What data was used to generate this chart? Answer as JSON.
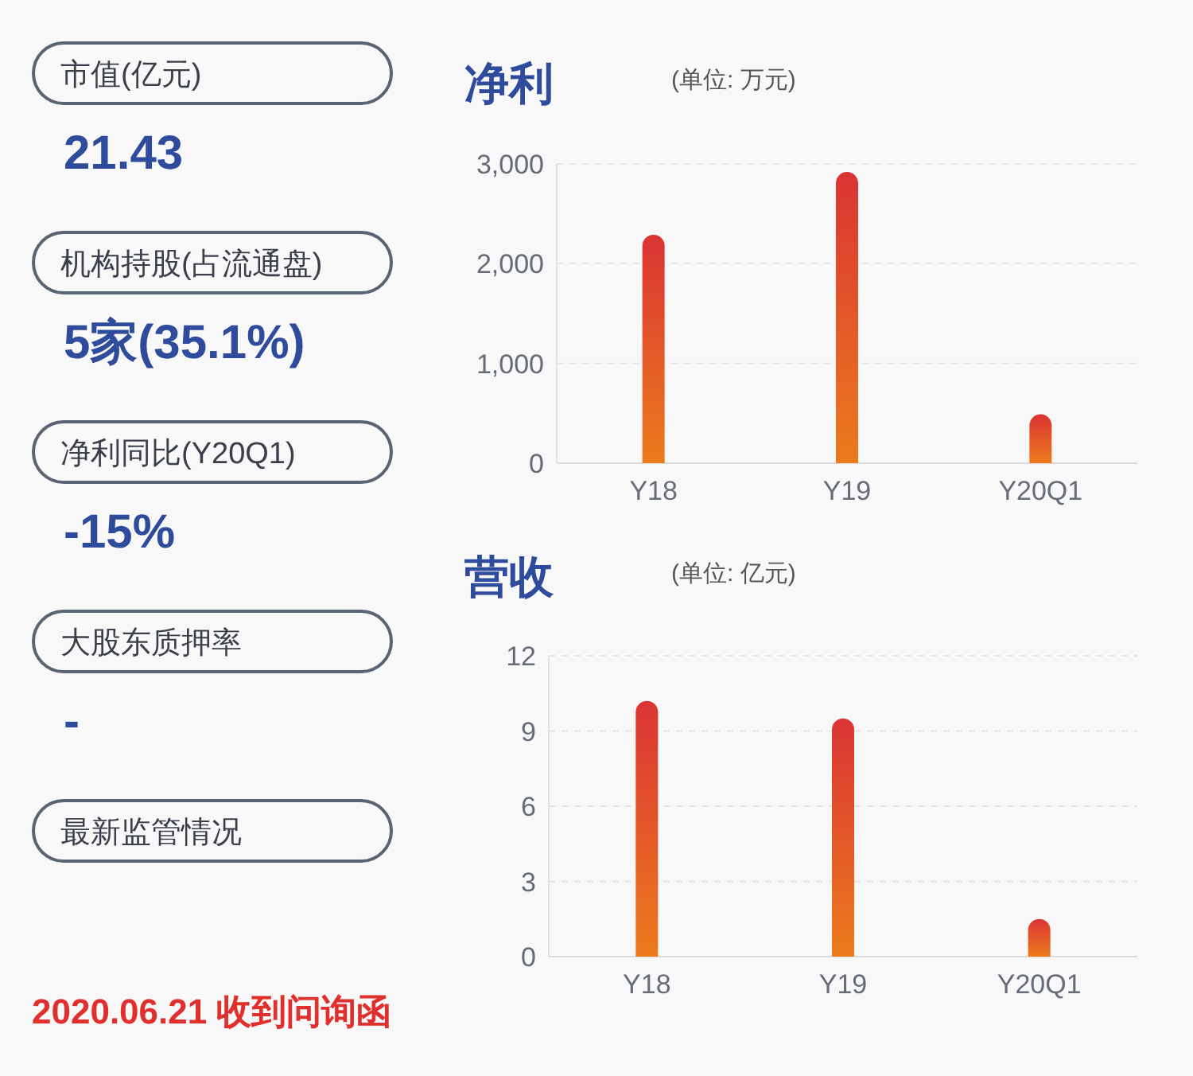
{
  "chart_data": [
    {
      "type": "other",
      "annotations": [
        "市值(亿元)",
        "21.43",
        "机构持股(占流通盘)",
        "5家(35.1%)",
        "净利同比(Y20Q1)",
        "-15%",
        "大股东质押率",
        "-",
        "最新监管情况",
        "2020.06.21 收到问询函"
      ]
    },
    {
      "type": "bar",
      "title": "净利",
      "subtitle": "(单位: 万元)",
      "categories": [
        "Y18",
        "Y19",
        "Y20Q1"
      ],
      "values": [
        2290,
        2920,
        490
      ],
      "color": "#da3434",
      "ylim": [
        0,
        3000
      ],
      "yticks": [
        0,
        {
          "value": 1000,
          "label": "1,000"
        },
        {
          "value": 2000,
          "label": "2,000"
        },
        {
          "value": 3000,
          "label": "3,000"
        }
      ],
      "grid": "y"
    },
    {
      "type": "bar",
      "title": "营收",
      "subtitle": "(单位: 亿元)",
      "categories": [
        "Y18",
        "Y19",
        "Y20Q1"
      ],
      "values": [
        10.2,
        9.5,
        1.5
      ],
      "color": "#da3434",
      "ylim": [
        0,
        12
      ],
      "yticks": [
        0,
        3,
        6,
        9,
        12
      ],
      "grid": "y"
    }
  ]
}
